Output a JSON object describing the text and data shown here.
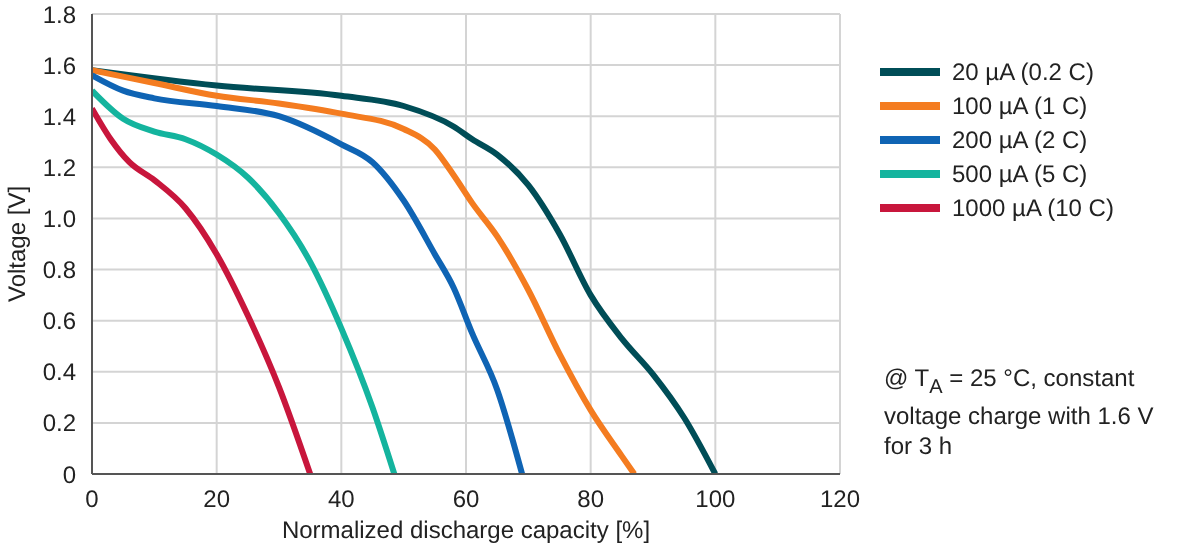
{
  "chart_data": {
    "type": "line",
    "xlabel": "Normalized discharge capacity [%]",
    "ylabel": "Voltage [V]",
    "xlim": [
      0,
      120
    ],
    "xticks": [
      0,
      20,
      40,
      60,
      80,
      100,
      120
    ],
    "ylim": [
      0,
      1.8
    ],
    "yticks": [
      0,
      0.2,
      0.4,
      0.6,
      0.8,
      {
        "value": 1,
        "label": "1.0"
      },
      1.2,
      1.4,
      1.6,
      1.8
    ],
    "grid": true,
    "legend": "right",
    "marker": "none",
    "line_style": "solid",
    "annotations": [
      "@ T$_{A}$ = 25 °C, constant voltage charge with 1.6 V for 3 h"
    ],
    "series": [
      {
        "name": "20 µA (0.2 C)",
        "color": "#004d57",
        "x": [
          0,
          20,
          40,
          50,
          58,
          61,
          65,
          70,
          75,
          80,
          85,
          90,
          95,
          100
        ],
        "values": [
          1.58,
          1.52,
          1.48,
          1.44,
          1.36,
          1.31,
          1.25,
          1.13,
          0.94,
          0.7,
          0.53,
          0.39,
          0.22,
          0
        ]
      },
      {
        "name": "100 µA (1 C)",
        "color": "#f47c20",
        "x": [
          0,
          10,
          20,
          30,
          40,
          50,
          55,
          58,
          61,
          65,
          70,
          75,
          80,
          85,
          87
        ],
        "values": [
          1.58,
          1.53,
          1.48,
          1.45,
          1.41,
          1.35,
          1.27,
          1.17,
          1.06,
          0.93,
          0.72,
          0.47,
          0.25,
          0.07,
          0
        ]
      },
      {
        "name": "200 µA (2 C)",
        "color": "#0f64b4",
        "x": [
          0,
          5,
          10,
          20,
          30,
          40,
          45,
          50,
          55,
          58,
          61,
          65,
          69
        ],
        "values": [
          1.56,
          1.5,
          1.47,
          1.44,
          1.4,
          1.29,
          1.22,
          1.07,
          0.86,
          0.73,
          0.55,
          0.33,
          0
        ]
      },
      {
        "name": "500 µA (5 C)",
        "color": "#14b49e",
        "x": [
          0,
          5,
          10,
          15,
          20,
          25,
          30,
          35,
          40,
          45,
          48.5
        ],
        "values": [
          1.5,
          1.39,
          1.34,
          1.31,
          1.25,
          1.16,
          1.02,
          0.83,
          0.57,
          0.26,
          0
        ]
      },
      {
        "name": "1000 µA (10 C)",
        "color": "#c8163c",
        "x": [
          0,
          3,
          6,
          10,
          15,
          20,
          25,
          30,
          35
        ],
        "values": [
          1.43,
          1.31,
          1.22,
          1.15,
          1.04,
          0.86,
          0.62,
          0.34,
          0
        ]
      }
    ]
  }
}
